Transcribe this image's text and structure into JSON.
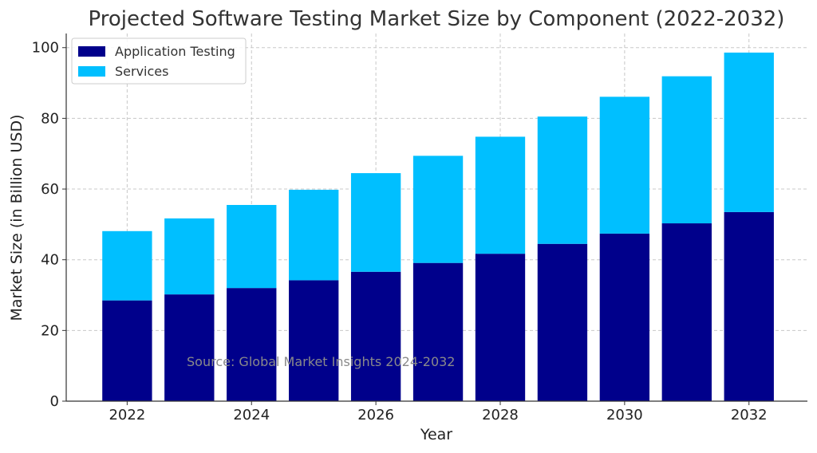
{
  "chart_data": {
    "type": "bar",
    "stacked": true,
    "title": "Projected Software Testing Market Size by Component (2022-2032)",
    "xlabel": "Year",
    "ylabel": "Market Size (in Billion USD)",
    "categories": [
      2022,
      2023,
      2024,
      2025,
      2026,
      2027,
      2028,
      2029,
      2030,
      2031,
      2032
    ],
    "x_tick_labels": [
      "2022",
      "2024",
      "2026",
      "2028",
      "2030",
      "2032"
    ],
    "y_ticks": [
      0,
      20,
      40,
      60,
      80,
      100
    ],
    "ylim": [
      0,
      104
    ],
    "series": [
      {
        "name": "Application Testing",
        "color": "#00008b",
        "values": [
          28.5,
          30.2,
          32.0,
          34.2,
          36.6,
          39.1,
          41.7,
          44.5,
          47.4,
          50.3,
          53.5
        ]
      },
      {
        "name": "Services",
        "color": "#00bfff",
        "values": [
          19.6,
          21.5,
          23.5,
          25.6,
          27.9,
          30.3,
          33.1,
          36.0,
          38.7,
          41.6,
          45.1
        ]
      }
    ],
    "grid": true,
    "legend_position": "top-left",
    "annotation": "Source: Global Market Insights 2024-2032"
  }
}
